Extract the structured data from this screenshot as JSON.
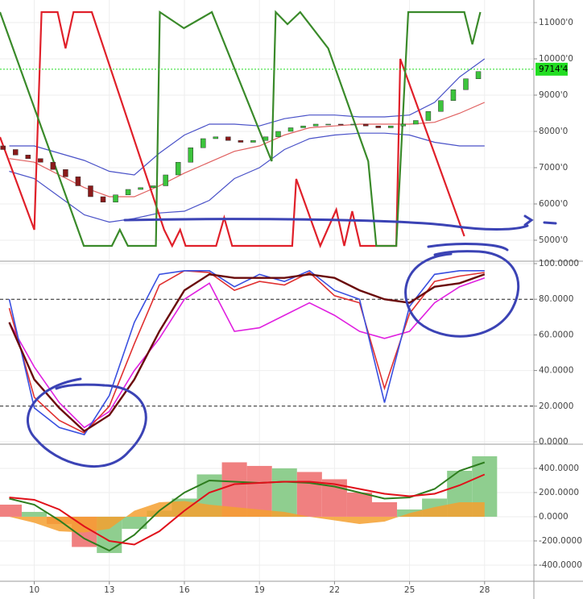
{
  "chart_data": [
    {
      "type": "candlestick",
      "x": [
        8.75,
        9.25,
        9.75,
        10.25,
        10.75,
        11.25,
        11.75,
        12.25,
        12.75,
        13.25,
        13.75,
        14.25,
        14.75,
        15.25,
        15.75,
        16.25,
        16.75,
        17.25,
        17.75,
        18.25,
        18.75,
        19.25,
        19.75,
        20.25,
        20.75,
        21.25,
        21.75,
        22.25,
        22.75,
        23.25,
        23.75,
        24.25,
        24.75,
        25.25,
        25.75,
        26.25,
        26.75,
        27.25,
        27.75
      ],
      "open": [
        7600,
        7500,
        7350,
        7250,
        7150,
        6950,
        6750,
        6500,
        6200,
        6050,
        6250,
        6400,
        6450,
        6500,
        6800,
        7150,
        7550,
        7800,
        7850,
        7750,
        7700,
        7750,
        7850,
        8000,
        8100,
        8150,
        8200,
        8200,
        8180,
        8200,
        8150,
        8100,
        8150,
        8200,
        8300,
        8550,
        8850,
        9150,
        9450
      ],
      "close": [
        7500,
        7350,
        7250,
        7150,
        6950,
        6750,
        6500,
        6200,
        6050,
        6250,
        6400,
        6450,
        6500,
        6800,
        7150,
        7550,
        7800,
        7850,
        7750,
        7700,
        7750,
        7850,
        8000,
        8100,
        8150,
        8200,
        8200,
        8180,
        8200,
        8150,
        8100,
        8150,
        8200,
        8300,
        8550,
        8850,
        9150,
        9450,
        9650
      ],
      "up_color": "#3cc43c",
      "down_color": "#8b1a1a",
      "series": [
        {
          "color": "#4a52c8",
          "x": [
            9,
            10,
            11,
            12,
            13,
            14,
            15,
            16,
            17,
            18,
            19,
            20,
            21,
            22,
            23,
            24,
            25,
            26,
            27,
            28
          ],
          "values": [
            7600,
            7600,
            7400,
            7200,
            6900,
            6800,
            7400,
            7900,
            8200,
            8200,
            8150,
            8350,
            8450,
            8450,
            8400,
            8400,
            8450,
            8800,
            9500,
            10000
          ]
        },
        {
          "color": "#4a52c8",
          "x": [
            9,
            10,
            11,
            12,
            13,
            14,
            15,
            16,
            17,
            18,
            19,
            20,
            21,
            22,
            23,
            24,
            25,
            26,
            27,
            28
          ],
          "values": [
            6900,
            6700,
            6200,
            5700,
            5500,
            5600,
            5750,
            5800,
            6100,
            6700,
            7000,
            7500,
            7800,
            7900,
            7950,
            7950,
            7900,
            7700,
            7600,
            7600
          ]
        },
        {
          "color": "#e06060",
          "x": [
            9,
            10,
            11,
            12,
            13,
            14,
            15,
            16,
            17,
            18,
            19,
            20,
            21,
            22,
            23,
            24,
            25,
            26,
            27,
            28
          ],
          "values": [
            7250,
            7150,
            6800,
            6450,
            6200,
            6200,
            6500,
            6850,
            7150,
            7450,
            7600,
            7900,
            8100,
            8150,
            8200,
            8200,
            8200,
            8250,
            8500,
            8800
          ]
        },
        {
          "color": "#e0202a",
          "x": [
            8.63,
            10,
            10.29,
            10.93,
            11.25,
            11.57,
            12.3,
            15.19,
            15.51,
            15.83,
            16.05,
            17.27,
            17.59,
            17.91,
            20.31,
            20.47,
            21.43,
            22.07,
            22.39,
            22.71,
            23.03,
            24.47,
            24.63,
            27.19
          ],
          "values": [
            7844,
            5289,
            11289,
            11289,
            10289,
            11289,
            11289,
            5289,
            4844,
            5289,
            4844,
            4844,
            5622,
            4844,
            4844,
            6689,
            4844,
            5844,
            4844,
            5800,
            4844,
            4844,
            10000,
            5111
          ]
        },
        {
          "color": "#3a8a2a",
          "x": [
            8.63,
            11.98,
            13.1,
            13.42,
            13.74,
            14.86,
            15.02,
            15.98,
            17.1,
            19.49,
            19.65,
            20.12,
            20.63,
            21.75,
            23.35,
            23.67,
            24.47,
            24.95,
            27.19,
            27.51,
            27.83
          ],
          "values": [
            11289,
            4844,
            4844,
            5289,
            4844,
            4844,
            11289,
            10844,
            11289,
            7178,
            11289,
            10956,
            11289,
            10289,
            7178,
            4844,
            4844,
            11289,
            11289,
            10400,
            11289
          ]
        }
      ],
      "last_price": {
        "value": 9714.4,
        "label": "9714'4"
      },
      "last_color": "#22dd22",
      "xlim": [
        8.63,
        29.97
      ],
      "ylim": [
        4444,
        11622
      ],
      "yticks": [
        {
          "value": 5000,
          "label": "5000'0"
        },
        {
          "value": 6000,
          "label": "6000'0"
        },
        {
          "value": 7000,
          "label": "7000'0"
        },
        {
          "value": 8000,
          "label": "8000'0"
        },
        {
          "value": 9000,
          "label": "9000'0"
        },
        {
          "value": 10000,
          "label": "10000'0"
        },
        {
          "value": 11000,
          "label": "11000'0"
        }
      ]
    },
    {
      "type": "line",
      "x": [
        9,
        10,
        11,
        12,
        13,
        14,
        15,
        16,
        17,
        18,
        19,
        20,
        21,
        22,
        23,
        24,
        25,
        26,
        27,
        28
      ],
      "series": [
        {
          "color": "#e020e0",
          "values": [
            67,
            42,
            22,
            8,
            17,
            40,
            58,
            80,
            89,
            62,
            64,
            71,
            78,
            71,
            62,
            58,
            62,
            78,
            87,
            92
          ]
        },
        {
          "color": "#e03030",
          "values": [
            75,
            25,
            12,
            5,
            20,
            55,
            88,
            96,
            95,
            85,
            90,
            88,
            95,
            82,
            78,
            30,
            72,
            90,
            93,
            95
          ]
        },
        {
          "color": "#3a50e0",
          "values": [
            80,
            19,
            8,
            4,
            26,
            67,
            94,
            96,
            96,
            87,
            94,
            90,
            96,
            85,
            80,
            22,
            76,
            94,
            96,
            96
          ]
        },
        {
          "color": "#6a0a0a",
          "values": [
            67,
            35,
            19,
            6,
            15,
            35,
            62,
            85,
            94,
            92,
            92,
            92,
            94,
            92,
            85,
            80,
            78,
            87,
            89,
            94
          ]
        }
      ],
      "levels": [
        20,
        80
      ],
      "xlim": [
        8.63,
        29.97
      ],
      "ylim": [
        -0.9,
        100.9
      ],
      "yticks": [
        {
          "value": 0,
          "label": "0.0000"
        },
        {
          "value": 20,
          "label": "20.0000"
        },
        {
          "value": 40,
          "label": "40.0000"
        },
        {
          "value": 60,
          "label": "60.0000"
        },
        {
          "value": 80,
          "label": "80.0000"
        },
        {
          "value": 100,
          "label": "100.0000"
        }
      ]
    },
    {
      "type": "bar",
      "x": [
        9,
        10,
        11,
        12,
        13,
        14,
        15,
        16,
        17,
        18,
        19,
        20,
        21,
        22,
        23,
        24,
        25,
        26,
        27,
        28
      ],
      "values": [
        100,
        40,
        -60,
        -250,
        -300,
        -100,
        50,
        150,
        350,
        450,
        420,
        400,
        370,
        310,
        200,
        120,
        60,
        150,
        380,
        500
      ],
      "bar_colors": [
        "#f08080",
        "#8fce8f",
        "#f08080",
        "#f08080",
        "#8fce8f",
        "#8fce8f",
        "#8fce8f",
        "#8fce8f",
        "#8fce8f",
        "#f08080",
        "#f08080",
        "#8fce8f",
        "#f08080",
        "#f08080",
        "#f08080",
        "#f08080",
        "#8fce8f",
        "#8fce8f",
        "#8fce8f",
        "#8fce8f"
      ],
      "area": {
        "color": "#f5a030",
        "values": [
          0,
          -50,
          -120,
          -130,
          -100,
          50,
          120,
          130,
          100,
          80,
          60,
          40,
          0,
          -30,
          -60,
          -40,
          30,
          80,
          120,
          120
        ]
      },
      "series": [
        {
          "color": "#2e7d1e",
          "values": [
            150,
            100,
            -30,
            -180,
            -280,
            -150,
            50,
            200,
            300,
            290,
            280,
            290,
            280,
            250,
            200,
            150,
            160,
            230,
            380,
            450
          ]
        },
        {
          "color": "#e0101a",
          "values": [
            160,
            140,
            60,
            -80,
            -200,
            -230,
            -120,
            50,
            200,
            270,
            280,
            290,
            290,
            270,
            230,
            190,
            170,
            190,
            260,
            350
          ]
        }
      ],
      "xlim": [
        8.63,
        29.97
      ],
      "ylim": [
        -527,
        593
      ],
      "xticks": [
        10,
        13,
        16,
        19,
        22,
        25,
        28
      ],
      "yticks": [
        {
          "value": -400,
          "label": "-400.0000"
        },
        {
          "value": -200,
          "label": "-200.0000"
        },
        {
          "value": 0,
          "label": "0.0000"
        },
        {
          "value": 200,
          "label": "200.0000"
        },
        {
          "value": 400,
          "label": "400.0000"
        }
      ]
    }
  ]
}
